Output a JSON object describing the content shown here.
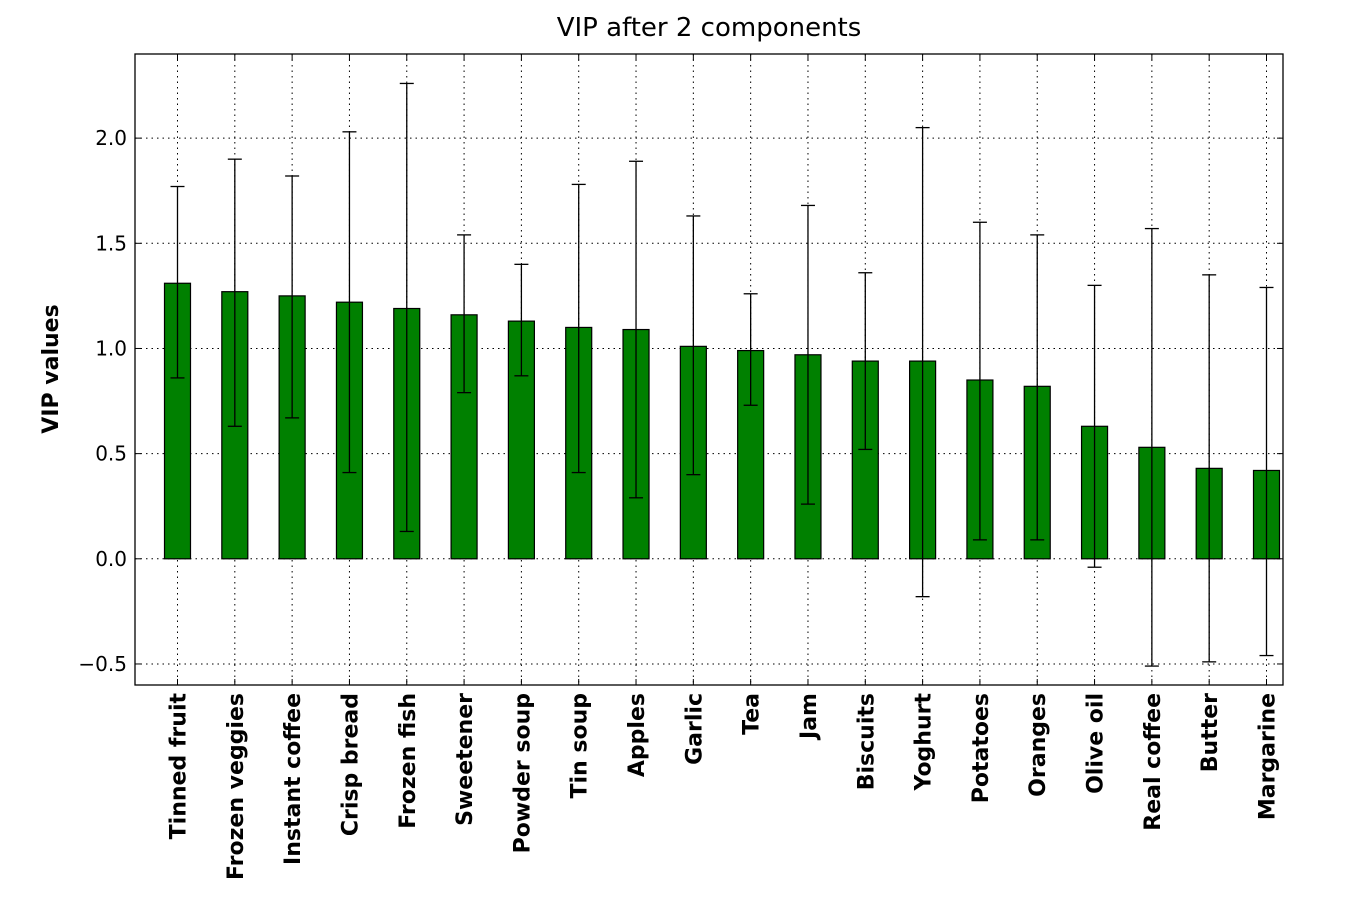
{
  "chart_data": {
    "type": "bar",
    "title": "VIP after 2 components",
    "xlabel": "",
    "ylabel": "VIP values",
    "ylim": [
      -0.6,
      2.4
    ],
    "yticks": [
      -0.5,
      0.0,
      0.5,
      1.0,
      1.5,
      2.0
    ],
    "ytick_labels": [
      "−0.5",
      "0.0",
      "0.5",
      "1.0",
      "1.5",
      "2.0"
    ],
    "grid": true,
    "bar_color": "#008000",
    "categories": [
      "Tinned fruit",
      "Frozen veggies",
      "Instant coffee",
      "Crisp bread",
      "Frozen fish",
      "Sweetener",
      "Powder soup",
      "Tin soup",
      "Apples",
      "Garlic",
      "Tea",
      "Jam",
      "Biscuits",
      "Yoghurt",
      "Potatoes",
      "Oranges",
      "Olive oil",
      "Real coffee",
      "Butter",
      "Margarine"
    ],
    "values": [
      1.31,
      1.27,
      1.25,
      1.22,
      1.19,
      1.16,
      1.13,
      1.1,
      1.09,
      1.01,
      0.99,
      0.97,
      0.94,
      0.94,
      0.85,
      0.82,
      0.63,
      0.53,
      0.43,
      0.42
    ],
    "error_low": [
      0.86,
      0.63,
      0.67,
      0.41,
      0.13,
      0.79,
      0.87,
      0.41,
      0.29,
      0.4,
      0.73,
      0.26,
      0.52,
      -0.18,
      0.09,
      0.09,
      -0.04,
      -0.51,
      -0.49,
      -0.46
    ],
    "error_high": [
      1.77,
      1.9,
      1.82,
      2.03,
      2.26,
      1.54,
      1.4,
      1.78,
      1.89,
      1.63,
      1.26,
      1.68,
      1.36,
      2.05,
      1.6,
      1.54,
      1.3,
      1.57,
      1.35,
      1.29
    ]
  }
}
